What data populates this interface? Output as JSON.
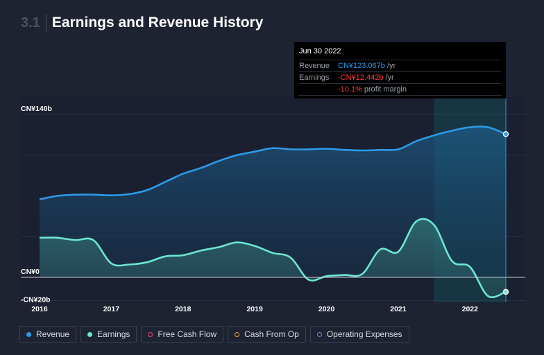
{
  "header": {
    "section_number": "3.1",
    "title": "Earnings and Revenue History"
  },
  "tooltip": {
    "date": "Jun 30 2022",
    "revenue_label": "Revenue",
    "revenue_value": "CN¥123.067b",
    "earnings_label": "Earnings",
    "earnings_value": "-CN¥12.442b",
    "unit": "/yr",
    "margin_value": "-10.1%",
    "margin_label": "profit margin"
  },
  "legend": {
    "items": [
      {
        "label": "Revenue",
        "color": "#2c9be8",
        "filled": true
      },
      {
        "label": "Earnings",
        "color": "#6ee6d2",
        "filled": true
      },
      {
        "label": "Free Cash Flow",
        "color": "#e8517a",
        "filled": false
      },
      {
        "label": "Cash From Op",
        "color": "#f0a03c",
        "filled": false
      },
      {
        "label": "Operating Expenses",
        "color": "#9b6cf0",
        "filled": false
      }
    ]
  },
  "chart_data": {
    "type": "area",
    "title": "Earnings and Revenue History",
    "y_tick_labels": [
      "CN¥140b",
      "CN¥0",
      "-CN¥20b"
    ],
    "y_ticks": [
      140,
      0,
      -20
    ],
    "ylim": [
      -20,
      140
    ],
    "xlim": [
      2016,
      2022.5
    ],
    "x_tick_labels": [
      "2016",
      "2017",
      "2018",
      "2019",
      "2020",
      "2021",
      "2022"
    ],
    "x_ticks": [
      2016,
      2017,
      2018,
      2019,
      2020,
      2021,
      2022
    ],
    "highlight_range": [
      2021.5,
      2022.5
    ],
    "series": [
      {
        "name": "Revenue",
        "color": "#2c9be8",
        "points": [
          [
            2016.0,
            67
          ],
          [
            2016.25,
            70
          ],
          [
            2016.5,
            71
          ],
          [
            2016.75,
            71
          ],
          [
            2017.0,
            70.5
          ],
          [
            2017.25,
            71.5
          ],
          [
            2017.5,
            75
          ],
          [
            2017.75,
            82
          ],
          [
            2018.0,
            89
          ],
          [
            2018.25,
            94
          ],
          [
            2018.5,
            100
          ],
          [
            2018.75,
            105
          ],
          [
            2019.0,
            108
          ],
          [
            2019.25,
            111
          ],
          [
            2019.5,
            110
          ],
          [
            2019.75,
            110
          ],
          [
            2020.0,
            110.5
          ],
          [
            2020.25,
            109.5
          ],
          [
            2020.5,
            109
          ],
          [
            2020.75,
            109.5
          ],
          [
            2021.0,
            110
          ],
          [
            2021.25,
            117
          ],
          [
            2021.5,
            122
          ],
          [
            2021.75,
            126
          ],
          [
            2022.0,
            129
          ],
          [
            2022.25,
            129
          ],
          [
            2022.5,
            123.067
          ]
        ]
      },
      {
        "name": "Earnings",
        "color": "#6ee6d2",
        "points": [
          [
            2016.0,
            34
          ],
          [
            2016.25,
            34
          ],
          [
            2016.5,
            32
          ],
          [
            2016.75,
            32
          ],
          [
            2017.0,
            12
          ],
          [
            2017.25,
            11
          ],
          [
            2017.5,
            13
          ],
          [
            2017.75,
            18
          ],
          [
            2018.0,
            19
          ],
          [
            2018.25,
            23
          ],
          [
            2018.5,
            26
          ],
          [
            2018.75,
            30
          ],
          [
            2019.0,
            27
          ],
          [
            2019.25,
            21
          ],
          [
            2019.5,
            17
          ],
          [
            2019.75,
            -2
          ],
          [
            2020.0,
            1
          ],
          [
            2020.25,
            2
          ],
          [
            2020.5,
            3
          ],
          [
            2020.75,
            24
          ],
          [
            2021.0,
            22
          ],
          [
            2021.25,
            48
          ],
          [
            2021.5,
            45
          ],
          [
            2021.75,
            14
          ],
          [
            2022.0,
            9
          ],
          [
            2022.25,
            -16
          ],
          [
            2022.5,
            -12.442
          ]
        ]
      }
    ]
  }
}
